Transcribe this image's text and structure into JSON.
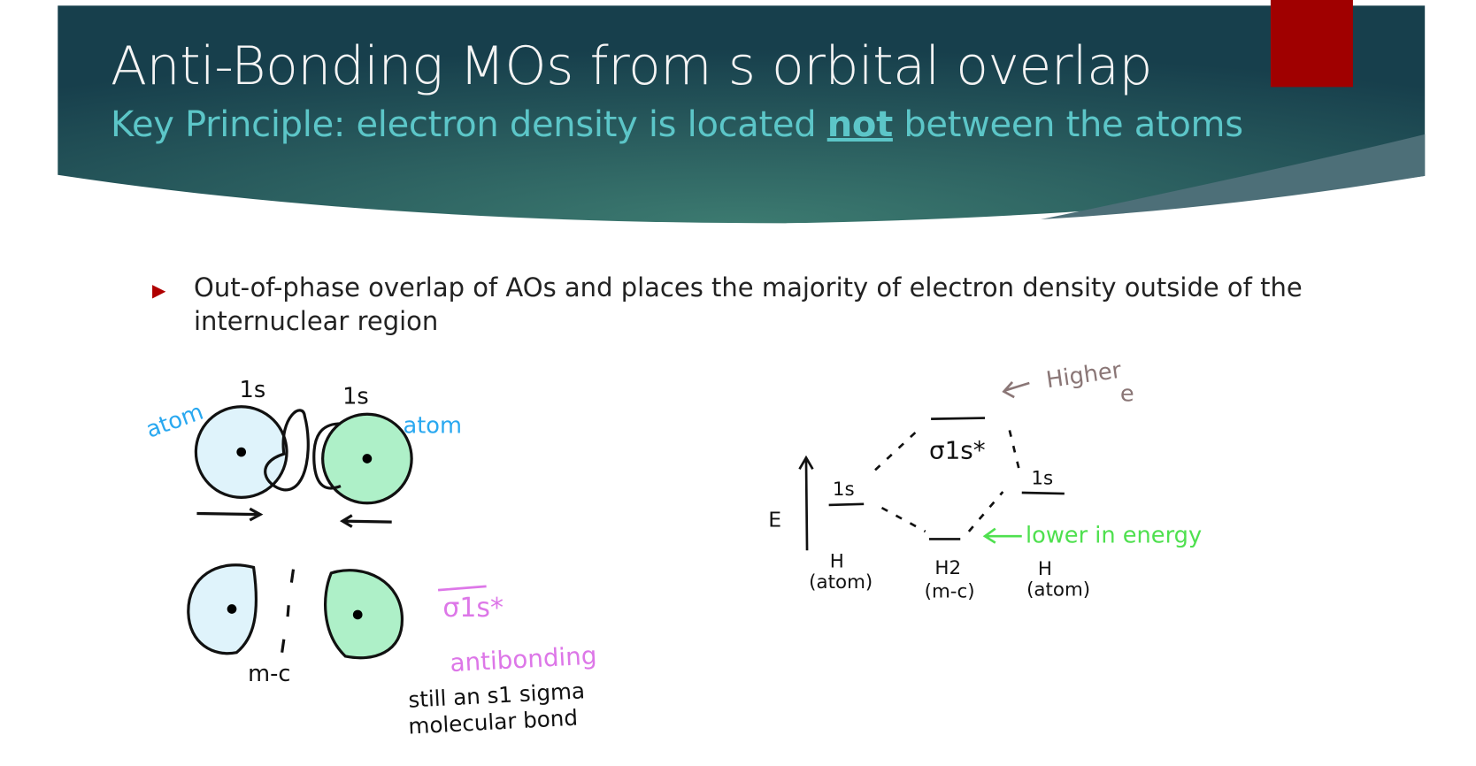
{
  "slide": {
    "title": "Anti-Bonding MOs from s orbital overlap",
    "subtitle_pre": "Key Principle: electron density is located ",
    "subtitle_emph": "not",
    "subtitle_post": " between the atoms",
    "bullet": "Out-of-phase overlap of AOs and places the majority of electron density outside of the internuclear region"
  },
  "colors": {
    "header": "#1f4f57",
    "header_center": "#3c7a70",
    "accent_red": "#a00000",
    "subtitle": "#5cc6c8",
    "atom_label": "#29a8f0",
    "antibonding": "#dd77e8",
    "higher": "#8a7676",
    "lower": "#4fe04f",
    "orbital_blue": "#dff3fb",
    "orbital_green": "#aef0c8"
  },
  "left_diagram": {
    "label_1s_left": "1s",
    "label_1s_right": "1s",
    "atom_left": "atom",
    "atom_right": "atom",
    "node_label": "m-c",
    "sigma_label": "σ1s*",
    "antibonding": "antibonding",
    "note_line1": "still an s1 sigma",
    "note_line2": "molecular bond"
  },
  "right_diagram": {
    "energy_axis": "E",
    "left_level": "1s",
    "right_level": "1s",
    "top_level": "σ1s*",
    "higher": "Higher",
    "higher_sub": "e",
    "lower": "lower in energy",
    "left_atom": "H",
    "left_atom_sub": "(atom)",
    "middle": "H2",
    "middle_sub": "(m-c)",
    "right_atom": "H",
    "right_atom_sub": "(atom)"
  }
}
